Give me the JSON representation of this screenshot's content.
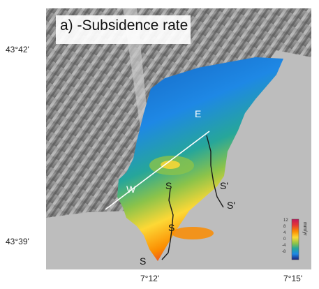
{
  "title": "a) -Subsidence rate",
  "latitude_labels": [
    "43°42'",
    "43°39'"
  ],
  "longitude_labels": [
    "7°12'",
    "7°15'"
  ],
  "profiles": [
    {
      "start": "W",
      "end": "E"
    },
    {
      "start": "S",
      "end": "S"
    },
    {
      "start": "S'",
      "end": "S'"
    }
  ],
  "profile_labels": {
    "e": "E",
    "w": "W",
    "s1": "S",
    "s2": "S",
    "s3": "S'",
    "s4": "S'"
  },
  "colorbar": {
    "unit": "mm/yr",
    "ticks": [
      "12",
      "8",
      "4",
      "0",
      "-4",
      "-8"
    ],
    "colors": [
      "#c2185b",
      "#e53935",
      "#fb8c00",
      "#fdd835",
      "#8bc34a",
      "#26a69a",
      "#1e88e5",
      "#1a237e"
    ]
  },
  "colors": {
    "land_hillshade": "#8a8a8a",
    "sea": "#bdbdbd",
    "profile_line": "#ffffff",
    "section_line": "#1a1a1a"
  }
}
